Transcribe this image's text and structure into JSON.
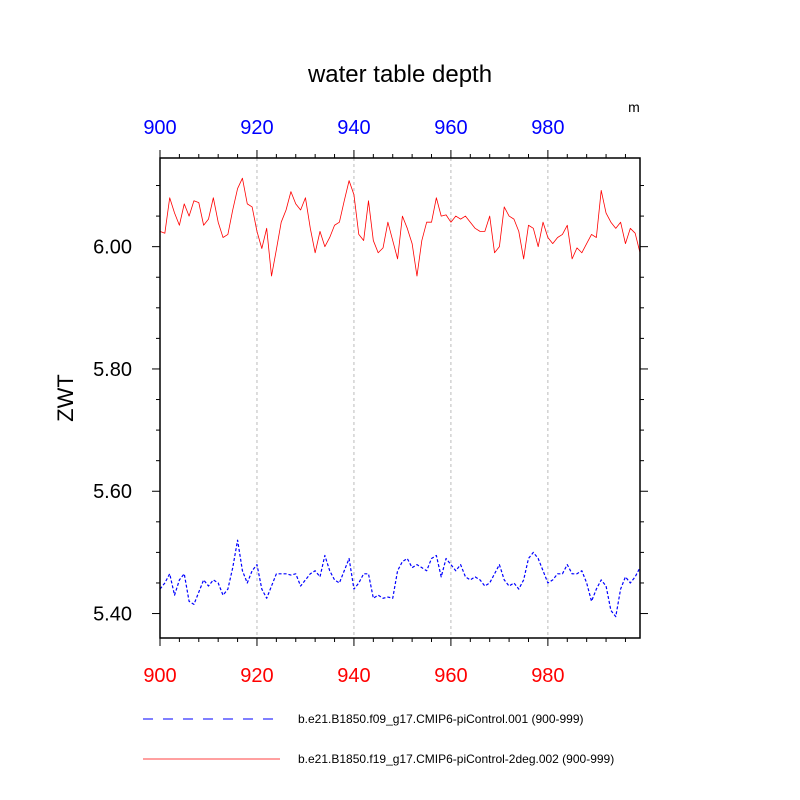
{
  "chart_data": {
    "type": "line",
    "title": "water table depth",
    "units": "m",
    "ylabel": "ZWT",
    "xlabel": "",
    "xlim": [
      900,
      999
    ],
    "ylim": [
      5.36,
      6.145
    ],
    "x_ticks": [
      900,
      920,
      940,
      960,
      980
    ],
    "x_tick_labels": [
      "900",
      "920",
      "940",
      "960",
      "980"
    ],
    "y_ticks": [
      5.4,
      5.6,
      5.8,
      6.0
    ],
    "y_tick_labels": [
      "5.40",
      "5.60",
      "5.80",
      "6.00"
    ],
    "grid": "vertical-dashed",
    "legend_placement": "bottom",
    "colors": {
      "top_axis": "#0000ff",
      "bottom_axis": "#ff0000"
    },
    "x": [
      900,
      901,
      902,
      903,
      904,
      905,
      906,
      907,
      908,
      909,
      910,
      911,
      912,
      913,
      914,
      915,
      916,
      917,
      918,
      919,
      920,
      921,
      922,
      923,
      924,
      925,
      926,
      927,
      928,
      929,
      930,
      931,
      932,
      933,
      934,
      935,
      936,
      937,
      938,
      939,
      940,
      941,
      942,
      943,
      944,
      945,
      946,
      947,
      948,
      949,
      950,
      951,
      952,
      953,
      954,
      955,
      956,
      957,
      958,
      959,
      960,
      961,
      962,
      963,
      964,
      965,
      966,
      967,
      968,
      969,
      970,
      971,
      972,
      973,
      974,
      975,
      976,
      977,
      978,
      979,
      980,
      981,
      982,
      983,
      984,
      985,
      986,
      987,
      988,
      989,
      990,
      991,
      992,
      993,
      994,
      995,
      996,
      997,
      998,
      999
    ],
    "series": [
      {
        "name": "b.e21.B1850.f09_g17.CMIP6-piControl.001 (900-999)",
        "color": "#0000ff",
        "dash": "dashed",
        "values": [
          5.44,
          5.45,
          5.465,
          5.43,
          5.455,
          5.465,
          5.42,
          5.415,
          5.435,
          5.455,
          5.445,
          5.455,
          5.45,
          5.43,
          5.44,
          5.475,
          5.52,
          5.47,
          5.45,
          5.47,
          5.48,
          5.44,
          5.425,
          5.445,
          5.465,
          5.465,
          5.465,
          5.463,
          5.465,
          5.445,
          5.455,
          5.465,
          5.47,
          5.46,
          5.495,
          5.47,
          5.455,
          5.45,
          5.47,
          5.49,
          5.44,
          5.45,
          5.465,
          5.465,
          5.425,
          5.43,
          5.425,
          5.427,
          5.425,
          5.47,
          5.485,
          5.49,
          5.475,
          5.48,
          5.475,
          5.47,
          5.49,
          5.495,
          5.46,
          5.49,
          5.48,
          5.47,
          5.48,
          5.46,
          5.455,
          5.46,
          5.455,
          5.445,
          5.45,
          5.465,
          5.48,
          5.455,
          5.445,
          5.45,
          5.44,
          5.455,
          5.49,
          5.5,
          5.49,
          5.47,
          5.45,
          5.455,
          5.465,
          5.465,
          5.48,
          5.465,
          5.465,
          5.47,
          5.45,
          5.42,
          5.44,
          5.455,
          5.445,
          5.405,
          5.395,
          5.44,
          5.46,
          5.45,
          5.46,
          5.475
        ]
      },
      {
        "name": "b.e21.B1850.f19_g17.CMIP6-piControl-2deg.002 (900-999)",
        "color": "#ff0000",
        "dash": "solid",
        "values": [
          6.025,
          6.022,
          6.08,
          6.055,
          6.035,
          6.07,
          6.05,
          6.075,
          6.072,
          6.035,
          6.045,
          6.08,
          6.04,
          6.015,
          6.02,
          6.06,
          6.095,
          6.112,
          6.07,
          6.065,
          6.025,
          5.997,
          6.03,
          5.952,
          5.995,
          6.04,
          6.06,
          6.09,
          6.07,
          6.06,
          6.08,
          6.03,
          5.99,
          6.025,
          6.0,
          6.015,
          6.035,
          6.04,
          6.075,
          6.108,
          6.085,
          6.02,
          6.01,
          6.075,
          6.01,
          5.99,
          5.998,
          6.04,
          6.01,
          5.98,
          6.05,
          6.03,
          6.005,
          5.952,
          6.01,
          6.04,
          6.04,
          6.08,
          6.05,
          6.052,
          6.04,
          6.05,
          6.045,
          6.05,
          6.04,
          6.03,
          6.025,
          6.025,
          6.05,
          5.99,
          6.0,
          6.065,
          6.05,
          6.045,
          6.025,
          5.98,
          6.035,
          6.03,
          6.0,
          6.04,
          6.015,
          6.005,
          6.015,
          6.02,
          6.035,
          5.98,
          5.998,
          5.99,
          6.005,
          6.02,
          6.015,
          6.092,
          6.055,
          6.04,
          6.03,
          6.04,
          6.005,
          6.03,
          6.022,
          5.99
        ]
      }
    ]
  }
}
